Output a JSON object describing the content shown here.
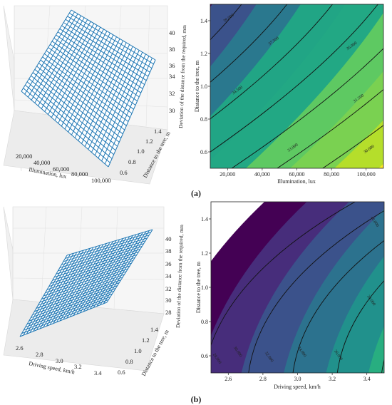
{
  "panels": [
    {
      "label": "(a)",
      "surface3d": {
        "type": "3d-surface",
        "x_label": "Illumination, lux",
        "y_label": "Distance to the tree, m",
        "z_label": "Deviation of the distance from the required, mm",
        "x_ticks": [
          "20,000",
          "40,000",
          "60,000",
          "80,000",
          "100,000"
        ],
        "y_ticks": [
          "0.6",
          "0.8",
          "1.0",
          "1.2",
          "1.4"
        ],
        "z_ticks": [
          "30",
          "32",
          "34",
          "36",
          "38",
          "40"
        ],
        "surface_color": "#1f77b4"
      },
      "contour": {
        "type": "contour",
        "x_label": "Illumination, lux",
        "y_label": "Distance to the tree, m",
        "x_ticks": [
          "20,000",
          "40,000",
          "60,000",
          "80,000",
          "100,000"
        ],
        "y_ticks": [
          "0.6",
          "0.8",
          "1.0",
          "1.2",
          "1.4"
        ],
        "xlim": [
          10000,
          110000
        ],
        "ylim": [
          0.5,
          1.5
        ],
        "level_labels": [
          "39.000",
          "37.500",
          "36.000",
          "34.500",
          "33.000",
          "31.500",
          "30.000"
        ],
        "label_positions": [
          [
            21000,
            1.41
          ],
          [
            47000,
            1.27
          ],
          [
            92000,
            1.24
          ],
          [
            26000,
            0.97
          ],
          [
            58000,
            0.62
          ],
          [
            96000,
            0.92
          ],
          [
            102000,
            0.61
          ]
        ],
        "colors": [
          "#440154",
          "#3b528b",
          "#2a788e",
          "#21a585",
          "#22a884",
          "#5ec962",
          "#7ad151",
          "#b5de2b",
          "#fde725"
        ]
      }
    },
    {
      "label": "(b)",
      "surface3d": {
        "type": "3d-surface",
        "x_label": "Driving speed, km/h",
        "y_label": "Distance to the tree, m",
        "z_label": "Deviation of the distance from the required, mm",
        "x_ticks": [
          "2.6",
          "2.8",
          "3.0",
          "3.2",
          "3.4"
        ],
        "y_ticks": [
          "0.6",
          "0.8",
          "1.0",
          "1.2",
          "1.4"
        ],
        "z_ticks": [
          "28",
          "30",
          "32",
          "34",
          "36",
          "38",
          "40"
        ],
        "surface_color": "#1f77b4"
      },
      "contour": {
        "type": "contour",
        "x_label": "Driving speed, km/h",
        "y_label": "Distance to the tree, m",
        "x_ticks": [
          "2.6",
          "2.8",
          "3.0",
          "3.2",
          "3.4"
        ],
        "y_ticks": [
          "0.6",
          "0.8",
          "1.0",
          "1.2",
          "1.4"
        ],
        "xlim": [
          2.5,
          3.5
        ],
        "ylim": [
          0.5,
          1.5
        ],
        "level_labels": [
          "28.000",
          "30.000",
          "32.000",
          "34.000",
          "36.000",
          "38.000",
          "40.000"
        ],
        "label_positions": [
          [
            2.53,
            0.58
          ],
          [
            2.65,
            0.62
          ],
          [
            2.83,
            0.59
          ],
          [
            3.02,
            0.62
          ],
          [
            3.23,
            0.6
          ],
          [
            3.42,
            0.92
          ],
          [
            3.44,
            1.38
          ]
        ],
        "colors": [
          "#440154",
          "#472d7b",
          "#3b528b",
          "#2c728e",
          "#21918c",
          "#28ae80",
          "#5ec962",
          "#addc30",
          "#fde725"
        ]
      }
    }
  ]
}
